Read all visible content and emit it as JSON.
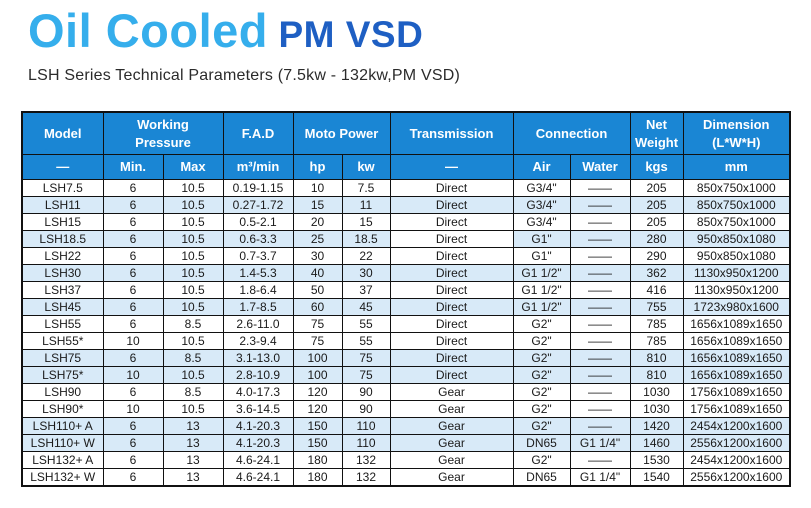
{
  "colors": {
    "header_bg": "#1A86D4",
    "row_shade": "#D8EAF8",
    "title_primary": "#35AEEC",
    "title_secondary": "#1E5FC3"
  },
  "title": {
    "main": "Oil Cooled",
    "sub": "PM VSD"
  },
  "subtitle": "LSH Series Technical Parameters (7.5kw - 132kw,PM VSD)",
  "table": {
    "header_row1": [
      {
        "label": "Model"
      },
      {
        "label": "Working\nPressure"
      },
      {
        "label": "F.A.D"
      },
      {
        "label": "Moto Power"
      },
      {
        "label": "Transmission"
      },
      {
        "label": "Connection"
      },
      {
        "label": "Net\nWeight"
      },
      {
        "label": "Dimension\n(L*W*H)"
      }
    ],
    "header_row2": [
      "—",
      "Min.",
      "Max",
      "m³/min",
      "hp",
      "kw",
      "—",
      "Air",
      "Water",
      "kgs",
      "mm"
    ],
    "rows": [
      {
        "cells": [
          "LSH7.5",
          "6",
          "10.5",
          "0.19-1.15",
          "10",
          "7.5",
          "Direct",
          "G3/4\"",
          "——",
          "205",
          "850x750x1000"
        ],
        "shaded": false
      },
      {
        "cells": [
          "LSH11",
          "6",
          "10.5",
          "0.27-1.72",
          "15",
          "11",
          "Direct",
          "G3/4\"",
          "——",
          "205",
          "850x750x1000"
        ],
        "shaded": true
      },
      {
        "cells": [
          "LSH15",
          "6",
          "10.5",
          "0.5-2.1",
          "20",
          "15",
          "Direct",
          "G3/4\"",
          "——",
          "205",
          "850x750x1000"
        ],
        "shaded": false
      },
      {
        "cells": [
          "LSH18.5",
          "6",
          "10.5",
          "0.6-3.3",
          "25",
          "18.5",
          "Direct",
          "G1\"",
          "——",
          "280",
          "950x850x1080"
        ],
        "shaded": true,
        "unshaded_cells": [
          6
        ]
      },
      {
        "cells": [
          "LSH22",
          "6",
          "10.5",
          "0.7-3.7",
          "30",
          "22",
          "Direct",
          "G1\"",
          "——",
          "290",
          "950x850x1080"
        ],
        "shaded": false
      },
      {
        "cells": [
          "LSH30",
          "6",
          "10.5",
          "1.4-5.3",
          "40",
          "30",
          "Direct",
          "G1 1/2\"",
          "——",
          "362",
          "1130x950x1200"
        ],
        "shaded": true
      },
      {
        "cells": [
          "LSH37",
          "6",
          "10.5",
          "1.8-6.4",
          "50",
          "37",
          "Direct",
          "G1 1/2\"",
          "——",
          "416",
          "1130x950x1200"
        ],
        "shaded": false
      },
      {
        "cells": [
          "LSH45",
          "6",
          "10.5",
          "1.7-8.5",
          "60",
          "45",
          "Direct",
          "G1 1/2\"",
          "——",
          "755",
          "1723x980x1600"
        ],
        "shaded": true
      },
      {
        "cells": [
          "LSH55",
          "6",
          "8.5",
          "2.6-11.0",
          "75",
          "55",
          "Direct",
          "G2\"",
          "——",
          "785",
          "1656x1089x1650"
        ],
        "shaded": false
      },
      {
        "cells": [
          "LSH55*",
          "10",
          "10.5",
          "2.3-9.4",
          "75",
          "55",
          "Direct",
          "G2\"",
          "——",
          "785",
          "1656x1089x1650"
        ],
        "shaded": false
      },
      {
        "cells": [
          "LSH75",
          "6",
          "8.5",
          "3.1-13.0",
          "100",
          "75",
          "Direct",
          "G2\"",
          "——",
          "810",
          "1656x1089x1650"
        ],
        "shaded": true
      },
      {
        "cells": [
          "LSH75*",
          "10",
          "10.5",
          "2.8-10.9",
          "100",
          "75",
          "Direct",
          "G2\"",
          "——",
          "810",
          "1656x1089x1650"
        ],
        "shaded": true
      },
      {
        "cells": [
          "LSH90",
          "6",
          "8.5",
          "4.0-17.3",
          "120",
          "90",
          "Gear",
          "G2\"",
          "——",
          "1030",
          "1756x1089x1650"
        ],
        "shaded": false
      },
      {
        "cells": [
          "LSH90*",
          "10",
          "10.5",
          "3.6-14.5",
          "120",
          "90",
          "Gear",
          "G2\"",
          "——",
          "1030",
          "1756x1089x1650"
        ],
        "shaded": false
      },
      {
        "cells": [
          "LSH110+ A",
          "6",
          "13",
          "4.1-20.3",
          "150",
          "110",
          "Gear",
          "G2\"",
          "——",
          "1420",
          "2454x1200x1600"
        ],
        "shaded": true
      },
      {
        "cells": [
          "LSH110+ W",
          "6",
          "13",
          "4.1-20.3",
          "150",
          "110",
          "Gear",
          "DN65",
          "G1 1/4\"",
          "1460",
          "2556x1200x1600"
        ],
        "shaded": true
      },
      {
        "cells": [
          "LSH132+ A",
          "6",
          "13",
          "4.6-24.1",
          "180",
          "132",
          "Gear",
          "G2\"",
          "——",
          "1530",
          "2454x1200x1600"
        ],
        "shaded": false
      },
      {
        "cells": [
          "LSH132+ W",
          "6",
          "13",
          "4.6-24.1",
          "180",
          "132",
          "Gear",
          "DN65",
          "G1 1/4\"",
          "1540",
          "2556x1200x1600"
        ],
        "shaded": false
      }
    ]
  }
}
